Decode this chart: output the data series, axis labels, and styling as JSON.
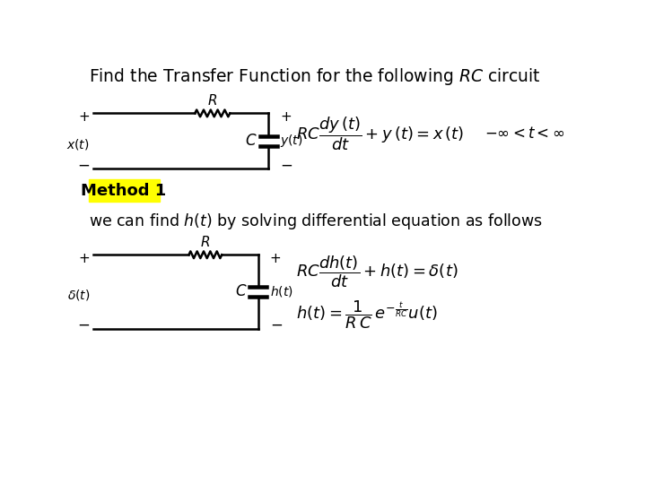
{
  "title": "Find the Transfer Function for the following $RC$ circuit",
  "method_label": "Method 1",
  "method_bg": "#FFFF00",
  "subtitle": "we can find $h(t)$ by solving differential equation as follows",
  "bg_color": "#FFFFFF",
  "circuit1": {
    "R_label": "$R$",
    "C_label": "$C$",
    "input_label": "$x(t)$",
    "output_label": "$y(t)$"
  },
  "circuit2": {
    "R_label": "$R$",
    "C_label": "$C$",
    "input_label": "$\\delta(t)$",
    "output_label": "$h(t)$"
  }
}
